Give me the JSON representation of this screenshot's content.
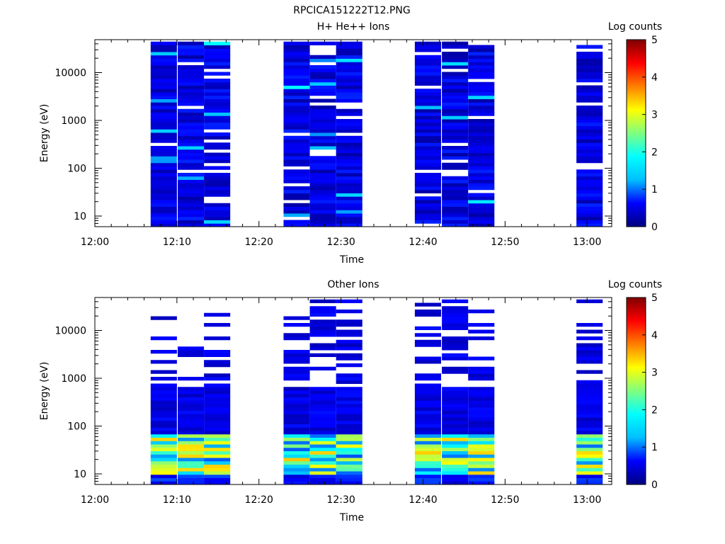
{
  "figure": {
    "title": "RPCICA151222T12.PNG"
  },
  "colorbar": {
    "label": "Log counts",
    "ticks": [
      "0",
      "1",
      "2",
      "3",
      "4",
      "5"
    ],
    "stops": [
      "#00007f",
      "#0000ff",
      "#00bfff",
      "#00ffff",
      "#7fff7f",
      "#ffff00",
      "#ff7f00",
      "#ff0000",
      "#7f0000"
    ]
  },
  "chart_data": [
    {
      "type": "heatmap",
      "title": "H+ He++ Ions",
      "xlabel": "Time",
      "ylabel": "Energy (eV)",
      "xticks": [
        "12:00",
        "12:10",
        "12:20",
        "12:30",
        "12:40",
        "12:50",
        "13:00"
      ],
      "yticks": [
        "10",
        "100",
        "1000",
        "10000"
      ],
      "xlim_minutes": [
        0,
        63
      ],
      "ylim_ev": [
        6,
        45000
      ],
      "yscale": "log",
      "zlabel": "Log counts",
      "zlim": [
        0,
        5
      ],
      "data_columns_start_minute": [
        6.8,
        10.1,
        13.3,
        23.0,
        26.2,
        29.4,
        39.0,
        42.3,
        45.5,
        58.7
      ],
      "column_width_minutes": 3.2,
      "typical_log_counts": {
        "background": 0.5,
        "max_observed": 1.9
      }
    },
    {
      "type": "heatmap",
      "title": "Other Ions",
      "xlabel": "Time",
      "ylabel": "Energy (eV)",
      "xticks": [
        "12:00",
        "12:10",
        "12:20",
        "12:30",
        "12:40",
        "12:50",
        "13:00"
      ],
      "yticks": [
        "10",
        "100",
        "1000",
        "10000"
      ],
      "xlim_minutes": [
        0,
        63
      ],
      "ylim_ev": [
        6,
        45000
      ],
      "yscale": "log",
      "zlabel": "Log counts",
      "zlim": [
        0,
        5
      ],
      "data_columns_start_minute": [
        6.8,
        10.1,
        13.3,
        23.0,
        26.2,
        29.4,
        39.0,
        42.3,
        45.5,
        58.7
      ],
      "column_width_minutes": 3.2,
      "typical_log_counts": {
        "background": 0.3,
        "max_observed": 3.5
      }
    }
  ]
}
